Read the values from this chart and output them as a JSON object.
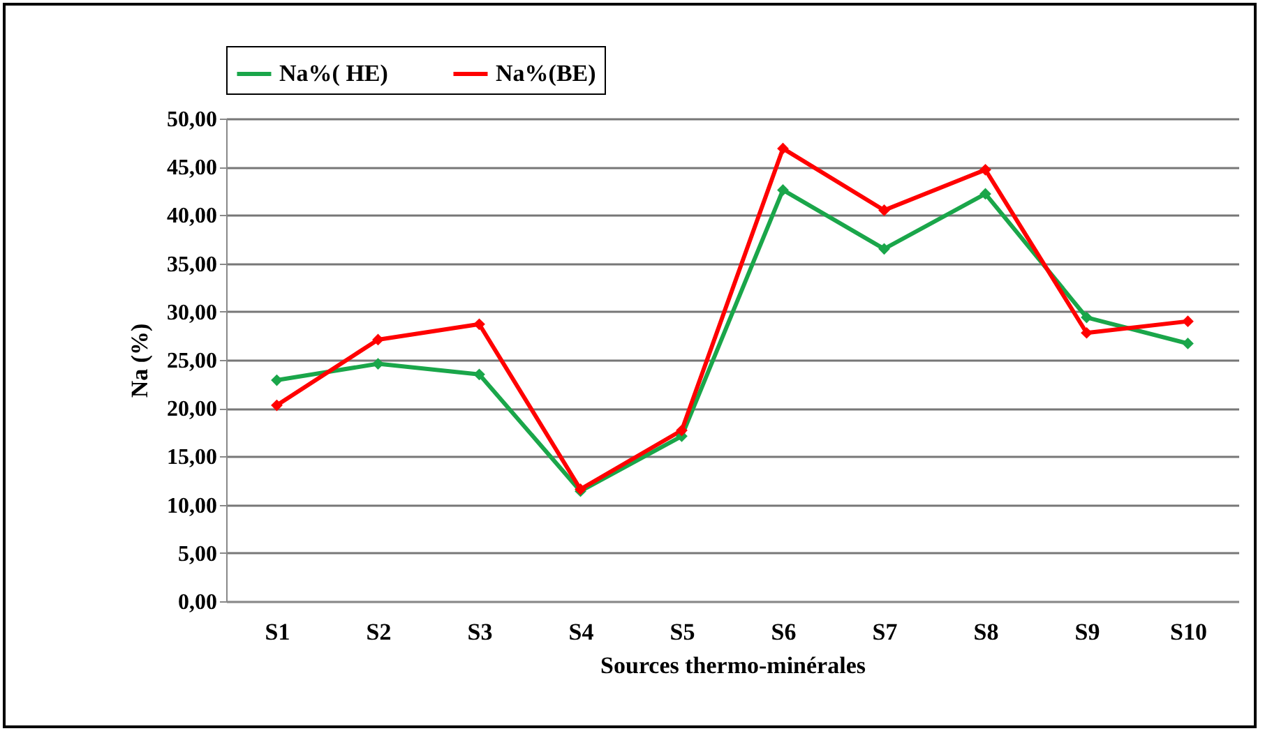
{
  "chart_data": {
    "type": "line",
    "xlabel": "Sources thermo-minérales",
    "ylabel": "Na (%)",
    "categories": [
      "S1",
      "S2",
      "S3",
      "S4",
      "S5",
      "S6",
      "S7",
      "S8",
      "S9",
      "S10"
    ],
    "series": [
      {
        "name": "Na%( HE)",
        "color": "#1aa64a",
        "values": [
          22.9,
          24.6,
          23.5,
          11.4,
          17.1,
          42.6,
          36.5,
          42.2,
          29.4,
          26.7
        ]
      },
      {
        "name": "Na%(BE)",
        "color": "#ff0000",
        "values": [
          20.3,
          27.1,
          28.7,
          11.6,
          17.7,
          46.9,
          40.5,
          44.7,
          27.8,
          29.0
        ]
      }
    ],
    "ylim": [
      0,
      50
    ],
    "yticks": [
      {
        "value": 0,
        "label": "0,00"
      },
      {
        "value": 5,
        "label": "5,00"
      },
      {
        "value": 10,
        "label": "10,00"
      },
      {
        "value": 15,
        "label": "15,00"
      },
      {
        "value": 20,
        "label": "20,00"
      },
      {
        "value": 25,
        "label": "25,00"
      },
      {
        "value": 30,
        "label": "30,00"
      },
      {
        "value": 35,
        "label": "35,00"
      },
      {
        "value": 40,
        "label": "40,00"
      },
      {
        "value": 45,
        "label": "45,00"
      },
      {
        "value": 50,
        "label": "50,00"
      }
    ],
    "grid": "y",
    "legend": "top",
    "marker": "diamond",
    "line_style": "solid"
  }
}
